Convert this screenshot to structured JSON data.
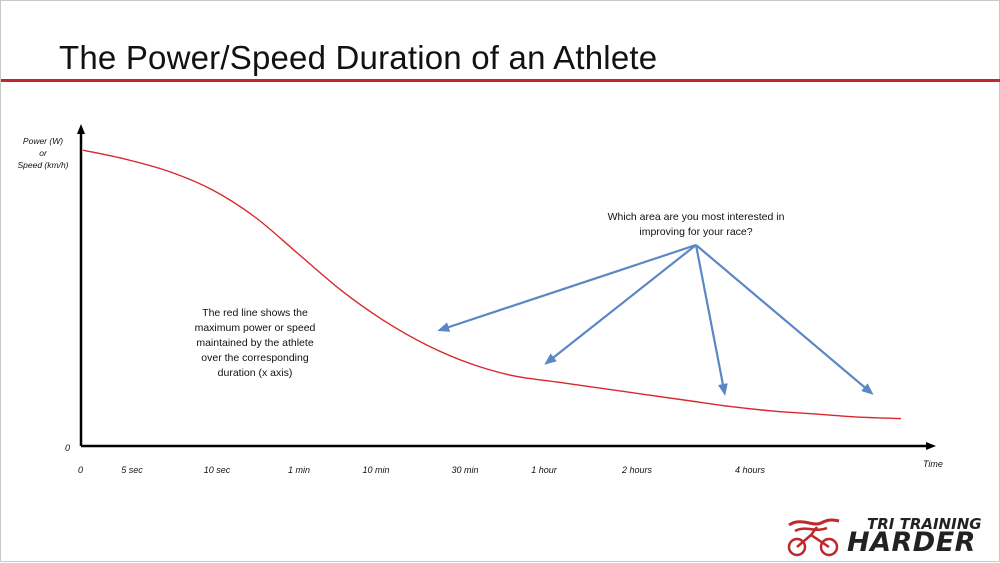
{
  "slide": {
    "title": "The Power/Speed Duration of an Athlete"
  },
  "colors": {
    "accent_red": "#c0272d",
    "curve_red": "#d9272e",
    "arrow_blue": "#5b87c5",
    "axis": "#000000",
    "text": "#111111"
  },
  "chart_data": {
    "type": "line",
    "title": "",
    "ylabel_lines": [
      "Power (W)",
      "or",
      "Speed (km/h)"
    ],
    "xlabel": "Time",
    "y_origin_label": "0",
    "x_origin_label": "0",
    "categories": [
      "5 sec",
      "10 sec",
      "1 min",
      "10 min",
      "30 min",
      "1 hour",
      "2 hours",
      "4 hours"
    ],
    "ylim": [
      0,
      100
    ],
    "grid": false,
    "legend": "none",
    "series": [
      {
        "x": [
          0,
          0.5,
          1,
          1.5,
          2,
          2.5,
          3,
          3.5,
          4,
          4.5,
          5,
          5.5,
          6,
          6.5,
          7,
          7.5,
          8,
          8.5,
          9,
          9.5
        ],
        "values": [
          97,
          94,
          90,
          84,
          75,
          63,
          51,
          41,
          33,
          27,
          23,
          21,
          19,
          17,
          15,
          13,
          11.5,
          10.5,
          9.5,
          9
        ]
      }
    ],
    "annotations": {
      "curve_note_lines": [
        "The red line shows the",
        "maximum power or speed",
        "maintained by the athlete",
        "over the corresponding",
        "duration (x axis)"
      ],
      "question_lines": [
        "Which area are you most interested in",
        "improving for your race?"
      ]
    }
  },
  "logo": {
    "line1": "TRI TRAINING",
    "line2": "HARDER"
  }
}
